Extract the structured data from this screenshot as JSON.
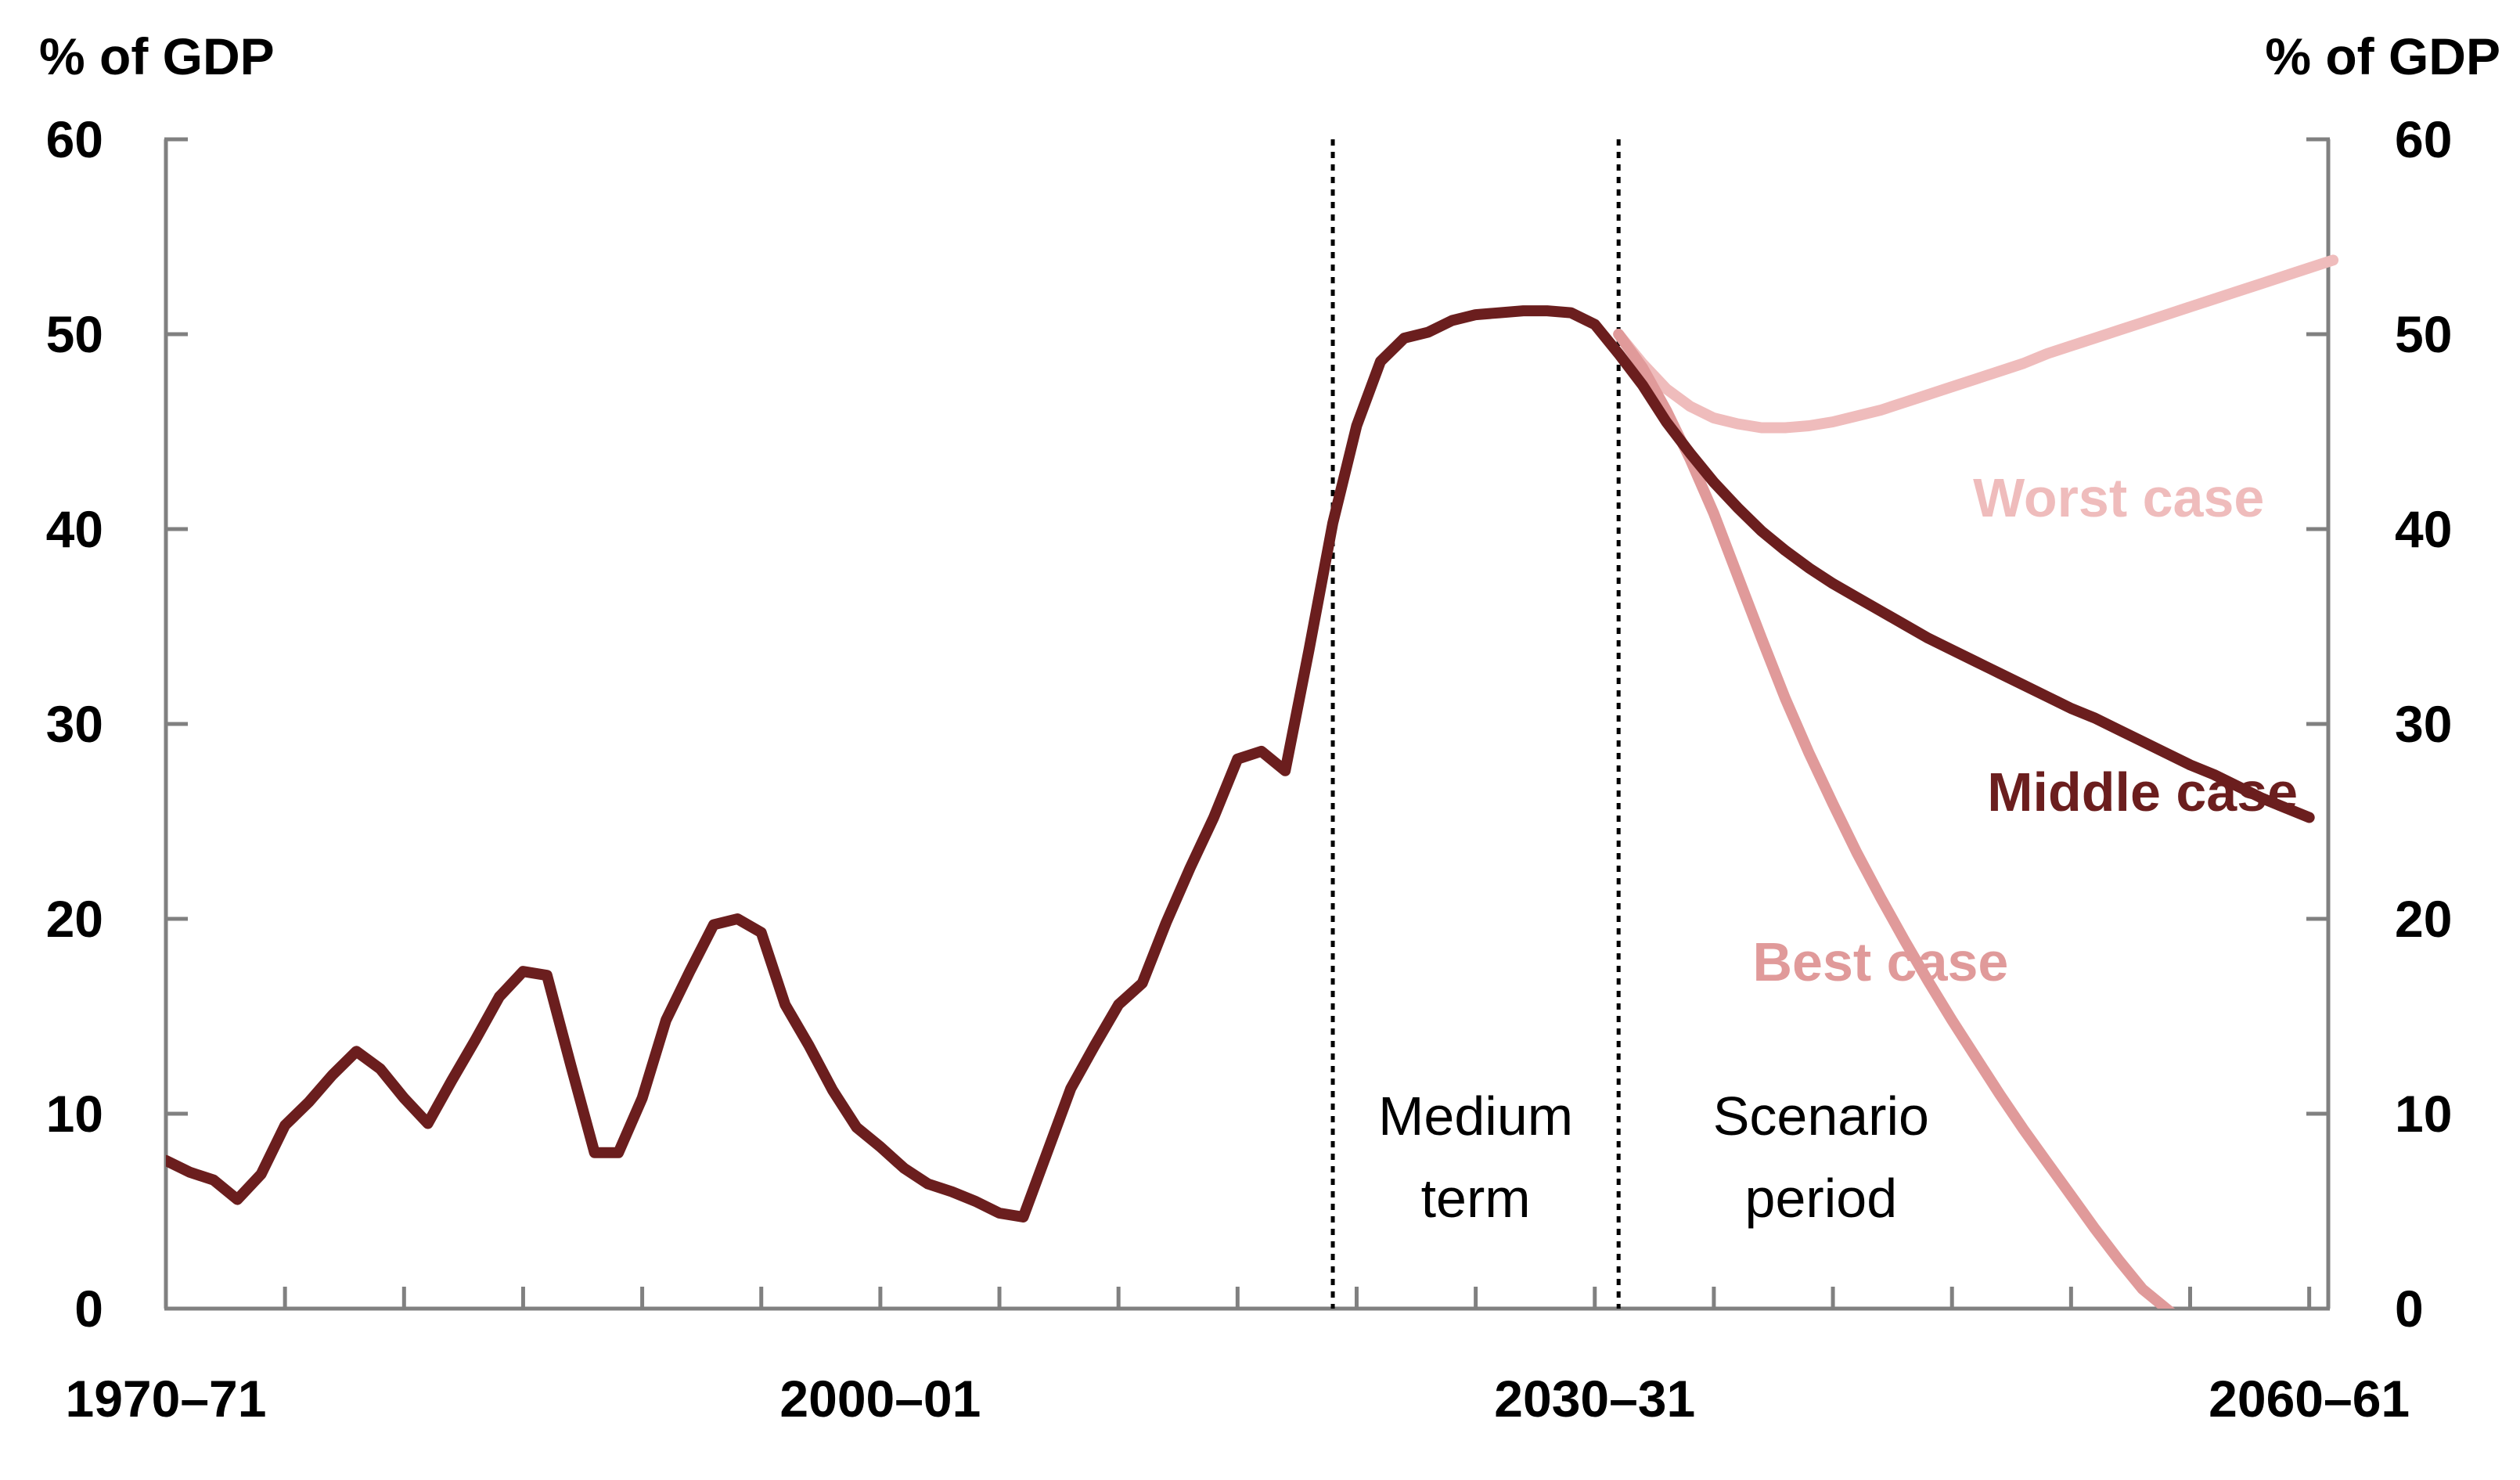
{
  "chart_data": {
    "type": "line",
    "title": "",
    "y_axis_label_left": "% of GDP",
    "y_axis_label_right": "% of GDP",
    "ylim": [
      0,
      60
    ],
    "y_ticks": [
      0,
      10,
      20,
      30,
      40,
      50,
      60
    ],
    "y_tick_labels": [
      "0",
      "10",
      "20",
      "30",
      "40",
      "50",
      "60"
    ],
    "x_range": [
      1970,
      2060
    ],
    "x_tick_labels": [
      {
        "year": 1970,
        "label": "1970–71"
      },
      {
        "year": 2000,
        "label": "2000–01"
      },
      {
        "year": 2030,
        "label": "2030–31"
      },
      {
        "year": 2060,
        "label": "2060–61"
      }
    ],
    "x_minor_tick_interval_years": 5,
    "grid": false,
    "period_dividers": [
      2019,
      2031
    ],
    "period_labels": [
      {
        "lines": [
          "Medium",
          "term"
        ],
        "x_center_year": 2025
      },
      {
        "lines": [
          "Scenario",
          "period"
        ],
        "x_center_year": 2039.5
      }
    ],
    "colors": {
      "middle": "#6b1e1e",
      "best": "#e09a9a",
      "worst": "#efbcbc",
      "axis": "#808080",
      "text": "#000000"
    },
    "series": [
      {
        "name": "Middle case",
        "color_key": "middle",
        "x": [
          1970,
          1971,
          1972,
          1973,
          1974,
          1975,
          1976,
          1977,
          1978,
          1979,
          1980,
          1981,
          1982,
          1983,
          1984,
          1985,
          1986,
          1987,
          1988,
          1989,
          1990,
          1991,
          1992,
          1993,
          1994,
          1995,
          1996,
          1997,
          1998,
          1999,
          2000,
          2001,
          2002,
          2003,
          2004,
          2005,
          2006,
          2007,
          2008,
          2009,
          2010,
          2011,
          2012,
          2013,
          2014,
          2015,
          2016,
          2017,
          2018,
          2019,
          2020,
          2021,
          2022,
          2023,
          2024,
          2025,
          2026,
          2027,
          2028,
          2029,
          2030,
          2031,
          2032,
          2033,
          2034,
          2035,
          2036,
          2037,
          2038,
          2039,
          2040,
          2041,
          2042,
          2043,
          2044,
          2045,
          2046,
          2047,
          2048,
          2049,
          2050,
          2051,
          2052,
          2053,
          2054,
          2055,
          2056,
          2057,
          2058,
          2059,
          2060
        ],
        "values": [
          7.6,
          7.0,
          6.6,
          5.6,
          6.9,
          9.4,
          10.6,
          12.0,
          13.2,
          12.3,
          10.8,
          9.5,
          11.7,
          13.8,
          16.0,
          17.3,
          17.1,
          12.5,
          8.0,
          8.0,
          10.8,
          14.8,
          17.3,
          19.7,
          20.0,
          19.3,
          15.6,
          13.5,
          11.2,
          9.3,
          8.3,
          7.2,
          6.4,
          6.0,
          5.5,
          4.9,
          4.7,
          8.0,
          11.3,
          13.5,
          15.6,
          16.7,
          19.8,
          22.6,
          25.2,
          28.2,
          28.6,
          27.6,
          33.8,
          40.3,
          45.3,
          48.6,
          49.8,
          50.1,
          50.7,
          51.0,
          51.1,
          51.2,
          51.2,
          51.1,
          50.5,
          49.0,
          47.4,
          45.5,
          43.9,
          42.4,
          41.1,
          39.9,
          38.9,
          38.0,
          37.2,
          36.5,
          35.8,
          35.1,
          34.4,
          33.8,
          33.2,
          32.6,
          32.0,
          31.4,
          30.8,
          30.3,
          29.7,
          29.1,
          28.5,
          27.9,
          27.4,
          26.8,
          26.2,
          25.7,
          25.2
        ]
      },
      {
        "name": "Best case",
        "color_key": "best",
        "x": [
          2031,
          2032,
          2033,
          2034,
          2035,
          2036,
          2037,
          2038,
          2039,
          2040,
          2041,
          2042,
          2043,
          2044,
          2045,
          2046,
          2047,
          2048,
          2049,
          2050,
          2051,
          2052,
          2053,
          2054,
          2055,
          2056,
          2057
        ],
        "values": [
          50.0,
          48.3,
          46.1,
          43.6,
          40.8,
          37.6,
          34.4,
          31.3,
          28.5,
          25.9,
          23.4,
          21.1,
          18.9,
          16.8,
          14.8,
          12.9,
          11.0,
          9.2,
          7.5,
          5.8,
          4.1,
          2.5,
          1.0,
          0.0,
          -1.0,
          -2.0,
          -3.0
        ],
        "label": "Best case"
      },
      {
        "name": "Worst case",
        "color_key": "worst",
        "x": [
          2031,
          2032,
          2033,
          2034,
          2035,
          2036,
          2037,
          2038,
          2039,
          2040,
          2041,
          2042,
          2043,
          2044,
          2045,
          2046,
          2047,
          2048,
          2049,
          2050,
          2051,
          2052,
          2053,
          2054,
          2055,
          2056,
          2057,
          2058,
          2059,
          2060,
          2061
        ],
        "values": [
          50.0,
          48.5,
          47.2,
          46.3,
          45.7,
          45.4,
          45.2,
          45.2,
          45.3,
          45.5,
          45.8,
          46.1,
          46.5,
          46.9,
          47.3,
          47.7,
          48.1,
          48.5,
          49.0,
          49.4,
          49.8,
          50.2,
          50.6,
          51.0,
          51.4,
          51.8,
          52.2,
          52.6,
          53.0,
          53.4,
          53.8
        ],
        "label": "Worst case"
      }
    ],
    "series_labels": [
      {
        "text": "Worst case",
        "color_key": "worst",
        "year": 2052,
        "value": 41.6
      },
      {
        "text": "Middle case",
        "color_key": "middle",
        "year": 2053,
        "value": 26.5
      },
      {
        "text": "Best case",
        "color_key": "best",
        "year": 2042,
        "value": 17.8
      }
    ]
  }
}
